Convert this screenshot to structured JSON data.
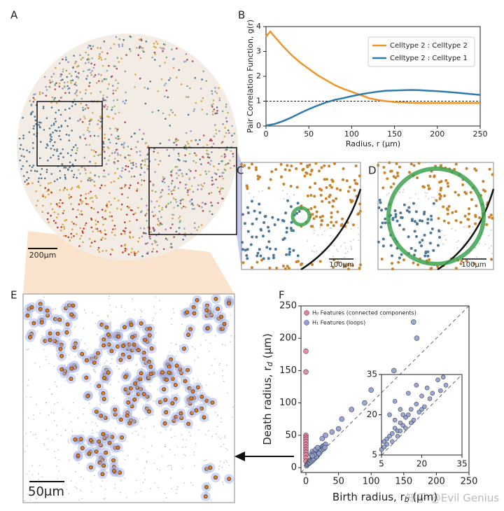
{
  "panel_labels": [
    "A",
    "B",
    "C",
    "D",
    "E",
    "F"
  ],
  "scale_bars": [
    "200μm",
    "100μm",
    "100μm",
    "50μm"
  ],
  "watermark": "知乎 @Evil Genius",
  "chart_data": [
    {
      "type": "line",
      "xlabel": "Radius, r (μm)",
      "ylabel": "Pair Correlation Function, g(r)",
      "x": [
        0,
        5,
        10,
        20,
        30,
        40,
        50,
        60,
        70,
        80,
        90,
        100,
        110,
        120,
        130,
        140,
        150,
        160,
        170,
        180,
        190,
        200,
        220,
        250
      ],
      "series": [
        {
          "name": "Celltype 2 : Celltype 2",
          "color": "#f0952a",
          "values": [
            3.6,
            3.8,
            3.6,
            3.2,
            2.85,
            2.55,
            2.3,
            2.05,
            1.85,
            1.65,
            1.5,
            1.38,
            1.25,
            1.12,
            1.05,
            1.0,
            0.97,
            0.95,
            0.93,
            0.92,
            0.92,
            0.92,
            0.92,
            0.92
          ]
        },
        {
          "name": "Celltype 2 : Celltype 1",
          "color": "#2f7bab",
          "values": [
            0.02,
            0.05,
            0.08,
            0.2,
            0.35,
            0.52,
            0.68,
            0.82,
            0.95,
            1.05,
            1.12,
            1.2,
            1.27,
            1.33,
            1.38,
            1.42,
            1.43,
            1.44,
            1.45,
            1.44,
            1.42,
            1.4,
            1.35,
            1.25
          ]
        }
      ],
      "reference_line": 1,
      "xlim": [
        0,
        250
      ],
      "xticks": [
        0,
        50,
        100,
        150,
        200,
        250
      ],
      "ylim": [
        0,
        4
      ],
      "yticks": [
        0,
        1,
        2,
        3,
        4
      ],
      "legend": "upper right"
    },
    {
      "type": "scatter",
      "xlabel": "Birth radius, r",
      "xlabel_sub": "b",
      "xlabel_unit": " (μm)",
      "ylabel": "Death radius, r",
      "ylabel_sub": "d",
      "ylabel_unit": " (μm)",
      "series": [
        {
          "name": "H₀ Features (connected components)",
          "color": "#e77f9c",
          "x": [
            0,
            0,
            0,
            0,
            0,
            0,
            0,
            0,
            0,
            0,
            0,
            0,
            0
          ],
          "y": [
            180,
            148,
            50,
            47,
            44,
            40,
            36,
            32,
            28,
            24,
            20,
            15,
            10
          ]
        },
        {
          "name": "H₁ Features (loops)",
          "color": "#8e9ed4",
          "x": [
            1,
            2,
            3,
            4,
            5,
            6,
            7,
            8,
            9,
            10,
            11,
            12,
            13,
            14,
            15,
            16,
            18,
            20,
            22,
            24,
            26,
            28,
            30,
            8,
            10,
            12,
            15,
            18,
            25,
            30,
            40,
            50,
            55,
            70,
            90,
            100,
            135,
            165,
            170,
            6,
            7,
            9,
            11,
            14,
            17,
            19,
            21,
            23,
            27,
            29,
            12,
            16,
            20,
            13,
            10
          ],
          "y": [
            3,
            5,
            6,
            8,
            7,
            10,
            9,
            12,
            13,
            15,
            14,
            17,
            16,
            19,
            20,
            22,
            24,
            27,
            30,
            28,
            33,
            34,
            36,
            20,
            25,
            22,
            28,
            31,
            45,
            50,
            55,
            60,
            75,
            90,
            100,
            120,
            150,
            225,
            200,
            8,
            11,
            10,
            12,
            15,
            18,
            21,
            23,
            26,
            29,
            31,
            14,
            17,
            22,
            20,
            18
          ]
        }
      ],
      "xlim": [
        -7.5,
        250
      ],
      "xticks": [
        0,
        50,
        100,
        150,
        200,
        250
      ],
      "ylim": [
        -7.5,
        250
      ],
      "yticks": [
        0,
        50,
        100,
        150,
        200,
        250
      ],
      "diagonal": true,
      "inset": {
        "xlim": [
          5,
          35
        ],
        "xticks": [
          5,
          20,
          35
        ],
        "ylim": [
          5,
          35
        ],
        "yticks": [
          5,
          20,
          35
        ]
      },
      "legend": "upper left"
    }
  ]
}
